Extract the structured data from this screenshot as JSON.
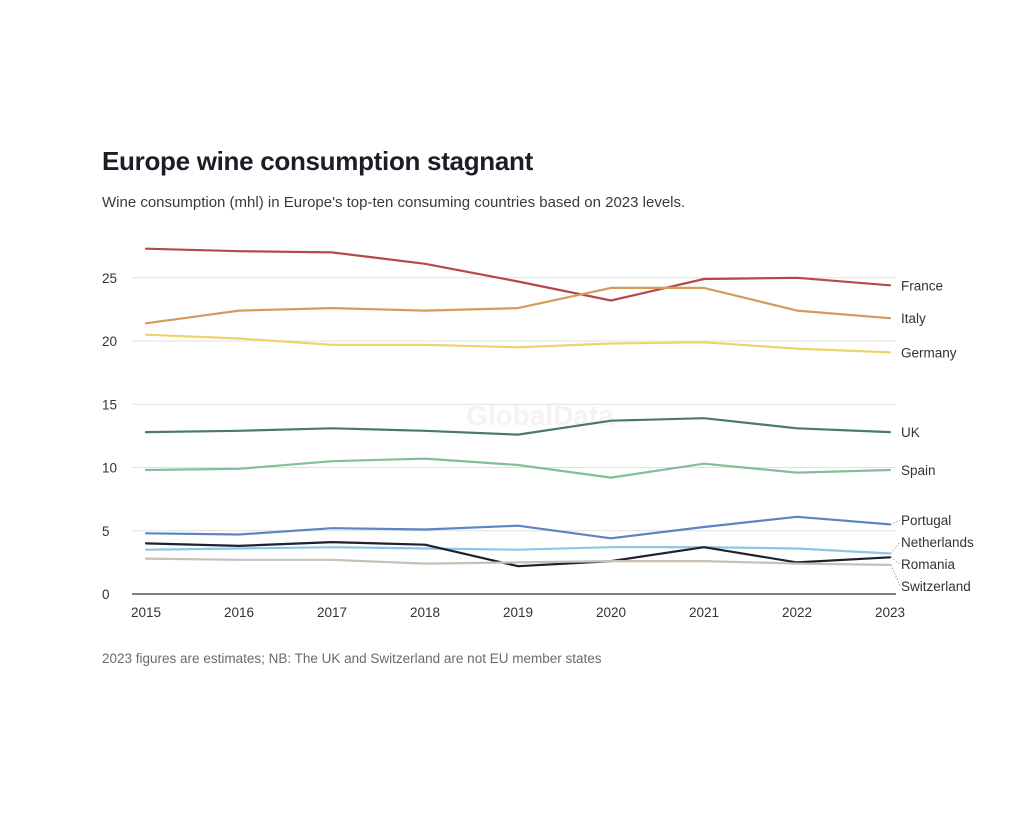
{
  "chart_data": {
    "type": "line",
    "title": "Europe wine consumption stagnant",
    "subtitle": "Wine consumption (mhl) in Europe's top-ten consuming countries based on 2023 levels.",
    "footnote": "2023 figures are estimates; NB: The UK and Switzerland are not EU member states",
    "watermark": "GlobalData",
    "xlabel": "",
    "ylabel": "",
    "x": [
      2015,
      2016,
      2017,
      2018,
      2019,
      2020,
      2021,
      2022,
      2023
    ],
    "x_tick_labels": [
      "2015",
      "2016",
      "2017",
      "2018",
      "2019",
      "2020",
      "2021",
      "2022",
      "2023"
    ],
    "y_ticks": [
      0,
      5,
      10,
      15,
      20,
      25
    ],
    "y_tick_labels": [
      "0",
      "5",
      "10",
      "15",
      "20",
      "25"
    ],
    "ylim": [
      0,
      28
    ],
    "grid": "horizontal",
    "legend": "direct-labels-right",
    "series": [
      {
        "name": "France",
        "color": "#b5494a",
        "values": [
          27.3,
          27.1,
          27.0,
          26.1,
          24.7,
          23.2,
          24.9,
          25.0,
          24.4
        ]
      },
      {
        "name": "Italy",
        "color": "#d69a5a",
        "values": [
          21.4,
          22.4,
          22.6,
          22.4,
          22.6,
          24.2,
          24.2,
          22.4,
          21.8
        ]
      },
      {
        "name": "Germany",
        "color": "#eed36b",
        "values": [
          20.5,
          20.2,
          19.7,
          19.7,
          19.5,
          19.8,
          19.9,
          19.4,
          19.1
        ]
      },
      {
        "name": "UK",
        "color": "#4a7b67",
        "values": [
          12.8,
          12.9,
          13.1,
          12.9,
          12.6,
          13.7,
          13.9,
          13.1,
          12.8
        ]
      },
      {
        "name": "Spain",
        "color": "#82bf98",
        "values": [
          9.8,
          9.9,
          10.5,
          10.7,
          10.2,
          9.2,
          10.3,
          9.6,
          9.8
        ]
      },
      {
        "name": "Portugal",
        "color": "#5b86c0",
        "values": [
          4.8,
          4.7,
          5.2,
          5.1,
          5.4,
          4.4,
          5.3,
          6.1,
          5.5
        ]
      },
      {
        "name": "Netherlands",
        "color": "#8cc5e6",
        "values": [
          3.5,
          3.6,
          3.7,
          3.6,
          3.5,
          3.7,
          3.7,
          3.6,
          3.2
        ]
      },
      {
        "name": "Romania",
        "color": "#1e2230",
        "values": [
          4.0,
          3.8,
          4.1,
          3.9,
          2.2,
          2.6,
          3.7,
          2.5,
          2.9
        ]
      },
      {
        "name": "Switzerland",
        "color": "#c9bfb3",
        "values": [
          2.8,
          2.7,
          2.7,
          2.4,
          2.5,
          2.6,
          2.6,
          2.4,
          2.3
        ]
      }
    ]
  }
}
